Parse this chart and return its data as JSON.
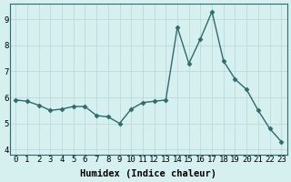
{
  "x": [
    0,
    1,
    2,
    3,
    4,
    5,
    6,
    7,
    8,
    9,
    10,
    11,
    12,
    13,
    14,
    15,
    16,
    17,
    18,
    19,
    20,
    21,
    22,
    23
  ],
  "y": [
    5.9,
    5.85,
    5.7,
    5.5,
    5.55,
    5.65,
    5.65,
    5.3,
    5.25,
    5.0,
    5.55,
    5.8,
    5.85,
    5.9,
    8.7,
    7.3,
    8.25,
    9.3,
    7.4,
    6.7,
    6.3,
    5.5,
    4.8,
    4.3
  ],
  "xlabel": "Humidex (Indice chaleur)",
  "ylim_min": 3.8,
  "ylim_max": 9.6,
  "yticks": [
    4,
    5,
    6,
    7,
    8,
    9
  ],
  "xtick_labels": [
    "0",
    "1",
    "2",
    "3",
    "4",
    "5",
    "6",
    "7",
    "8",
    "9",
    "10",
    "11",
    "12",
    "13",
    "14",
    "15",
    "16",
    "17",
    "18",
    "19",
    "20",
    "21",
    "22",
    "23"
  ],
  "line_color": "#2e6b6b",
  "marker": "D",
  "marker_size": 2.5,
  "bg_color": "#d6efef",
  "grid_color": "#b8d4d4",
  "tick_fontsize": 6.5,
  "xlabel_fontsize": 7.5,
  "line_width": 1.0
}
